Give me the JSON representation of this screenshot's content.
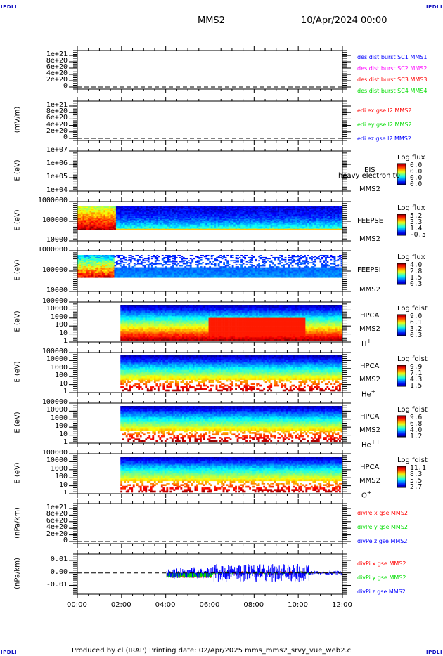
{
  "header": {
    "corner_tl": "IPDLI",
    "corner_tr": "IPDLI",
    "corner_bl": "IPDLI",
    "corner_br": "IPDLI",
    "spacecraft": "MMS2",
    "datetime": "10/Apr/2024 00:00"
  },
  "footer": {
    "text": "Produced by cl (IRAP)    Printing date: 02/Apr/2025    mms_mms2_srvy_vue_web2.cl"
  },
  "chart_data": [
    {
      "id": "panel1",
      "type": "line",
      "ylabel": "",
      "yticks": [
        "1e+21",
        "8e+20",
        "6e+20",
        "4e+20",
        "2e+20",
        "0"
      ],
      "ylim": [
        0,
        1e+21
      ],
      "zero_line": true,
      "legend": [
        {
          "text": "des dist burst SC1 MMS1",
          "color": "#0000ff"
        },
        {
          "text": "des dist burst SC2 MMS2",
          "color": "#ff00ff"
        },
        {
          "text": "des dist burst SC3 MMS3",
          "color": "#ff0000"
        },
        {
          "text": "des dist burst SC4 MMS4",
          "color": "#00dd00"
        }
      ],
      "series": []
    },
    {
      "id": "panel2",
      "type": "line",
      "ylabel": "(mV/m)",
      "yticks": [
        "1e+21",
        "8e+20",
        "6e+20",
        "4e+20",
        "2e+20",
        "0"
      ],
      "ylim": [
        0,
        1e+21
      ],
      "zero_line": true,
      "legend": [
        {
          "text": "edi ex gse l2 MMS2",
          "color": "#ff0000"
        },
        {
          "text": "edi ey gse l2 MMS2",
          "color": "#00dd00"
        },
        {
          "text": "edi ez gse l2 MMS2",
          "color": "#0000ff"
        }
      ],
      "series": []
    },
    {
      "id": "panel3",
      "type": "heatmap",
      "ylabel": "E (eV)",
      "yticks": [
        "1e+07",
        "1e+06",
        "1e+05",
        "1e+04"
      ],
      "ylim": [
        10000.0,
        10000000.0
      ],
      "instrument": "EIS",
      "overlay_text": "heavy electron t0",
      "spacecraft": "MMS2",
      "cb_title": "Log flux",
      "cb_values": [
        "0.0",
        "0.0",
        "0.0",
        "0.0"
      ],
      "coverage": []
    },
    {
      "id": "panel4",
      "type": "heatmap",
      "ylabel": "E (eV)",
      "yticks": [
        "1000000",
        "100000",
        "10000"
      ],
      "ylim": [
        10000.0,
        1000000.0
      ],
      "instrument": "FEEPSE",
      "spacecraft": "MMS2",
      "cb_title": "Log flux",
      "cb_values": [
        "5.2",
        "3.3",
        "1.4",
        "-0.5"
      ],
      "coverage": [
        [
          0,
          12
        ]
      ]
    },
    {
      "id": "panel5",
      "type": "heatmap",
      "ylabel": "E (eV)",
      "yticks": [
        "1000000",
        "100000",
        "10000"
      ],
      "ylim": [
        10000.0,
        1000000.0
      ],
      "instrument": "FEEPSI",
      "spacecraft": "MMS2",
      "cb_title": "Log flux",
      "cb_values": [
        "4.0",
        "2.8",
        "1.5",
        "0.3"
      ],
      "coverage": [
        [
          0,
          12
        ]
      ]
    },
    {
      "id": "panel6",
      "type": "heatmap",
      "ylabel": "E (eV)",
      "yticks": [
        "100000",
        "10000",
        "1000",
        "100",
        "10",
        "1"
      ],
      "ylim": [
        1,
        100000.0
      ],
      "instrument": "HPCA",
      "spacecraft": "MMS2",
      "species": "H",
      "species_sup": "+",
      "cb_title": "Log fdist",
      "cb_values": [
        "9.0",
        "6.1",
        "3.2",
        "0.3"
      ],
      "coverage": [
        [
          1.95,
          12
        ]
      ]
    },
    {
      "id": "panel7",
      "type": "heatmap",
      "ylabel": "E (eV)",
      "yticks": [
        "100000",
        "10000",
        "1000",
        "100",
        "10",
        "1"
      ],
      "ylim": [
        1,
        100000.0
      ],
      "instrument": "HPCA",
      "spacecraft": "MMS2",
      "species": "He",
      "species_sup": "+",
      "cb_title": "Log fdist",
      "cb_values": [
        "9.9",
        "7.1",
        "4.3",
        "1.5"
      ],
      "coverage": [
        [
          1.95,
          12
        ]
      ]
    },
    {
      "id": "panel8",
      "type": "heatmap",
      "ylabel": "E (eV)",
      "yticks": [
        "100000",
        "10000",
        "1000",
        "100",
        "10",
        "1"
      ],
      "ylim": [
        1,
        100000.0
      ],
      "instrument": "HPCA",
      "spacecraft": "MMS2",
      "species": "He",
      "species_sup": "++",
      "cb_title": "Log fdist",
      "cb_values": [
        "9.6",
        "6.8",
        "4.0",
        "1.2"
      ],
      "coverage": [
        [
          1.95,
          12
        ]
      ]
    },
    {
      "id": "panel9",
      "type": "heatmap",
      "ylabel": "E (eV)",
      "yticks": [
        "100000",
        "10000",
        "1000",
        "100",
        "10",
        "1"
      ],
      "ylim": [
        1,
        100000.0
      ],
      "instrument": "HPCA",
      "spacecraft": "MMS2",
      "species": "O",
      "species_sup": "+",
      "cb_title": "Log fdist",
      "cb_values": [
        "11.1",
        "8.3",
        "5.5",
        "2.7"
      ],
      "coverage": [
        [
          1.95,
          12
        ]
      ]
    },
    {
      "id": "panel10",
      "type": "line",
      "ylabel": "(nPa/km)",
      "yticks": [
        "1e+21",
        "8e+20",
        "6e+20",
        "4e+20",
        "2e+20",
        "0"
      ],
      "ylim": [
        0,
        1e+21
      ],
      "zero_line": true,
      "legend": [
        {
          "text": "divPe x gse MMS2",
          "color": "#ff0000"
        },
        {
          "text": "divPe y gse MMS2",
          "color": "#00dd00"
        },
        {
          "text": "divPe z gse MMS2",
          "color": "#0000ff"
        }
      ],
      "series": []
    },
    {
      "id": "panel11",
      "type": "line",
      "ylabel": "(nPa/km)",
      "yticks": [
        "0.01",
        "0.00",
        "-0.01"
      ],
      "ylim": [
        -0.017,
        0.015
      ],
      "zero_line": true,
      "legend": [
        {
          "text": "divPi x gse MMS2",
          "color": "#ff0000"
        },
        {
          "text": "divPi y gse MMS2",
          "color": "#00dd00"
        },
        {
          "text": "divPi z gse MMS2",
          "color": "#0000ff"
        }
      ],
      "series": [
        {
          "name": "divPi x gse MMS2",
          "x_start": 4.05,
          "x_end": 12,
          "y_min": -0.006,
          "y_max": 0.004
        },
        {
          "name": "divPi y gse MMS2",
          "x_start": 4.05,
          "x_end": 12,
          "y_min": -0.005,
          "y_max": 0.003
        },
        {
          "name": "divPi z gse MMS2",
          "x_start": 4.05,
          "x_end": 12,
          "y_min": -0.014,
          "y_max": 0.012
        }
      ]
    }
  ],
  "xaxis": {
    "ticks": [
      "00:00",
      "02:00",
      "04:00",
      "06:00",
      "08:00",
      "10:00",
      "12:00"
    ],
    "xlim_hours": [
      0,
      12
    ]
  }
}
